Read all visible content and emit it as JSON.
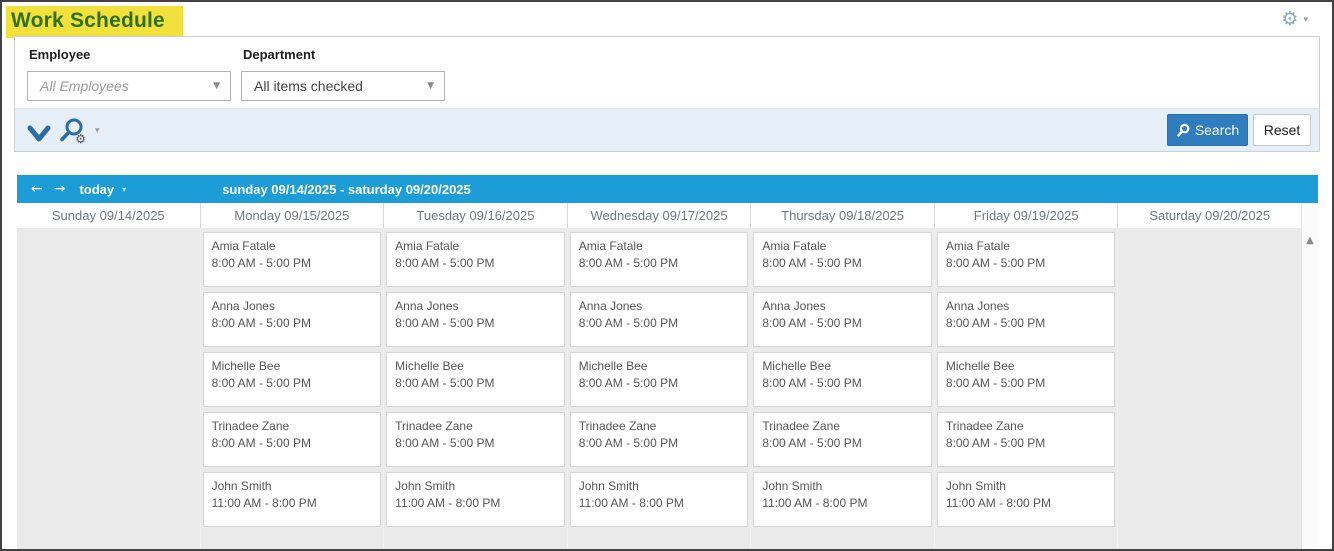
{
  "window": {
    "title": "Work Schedule"
  },
  "filters": {
    "employee_label": "Employee",
    "employee_value": "All Employees",
    "department_label": "Department",
    "department_value": "All items checked"
  },
  "toolbar": {
    "search_label": "Search",
    "reset_label": "Reset"
  },
  "scheduler": {
    "today_label": "today",
    "date_range": "sunday 09/14/2025 - saturday 09/20/2025",
    "days": [
      "Sunday 09/14/2025",
      "Monday 09/15/2025",
      "Tuesday 09/16/2025",
      "Wednesday 09/17/2025",
      "Thursday 09/18/2025",
      "Friday 09/19/2025",
      "Saturday 09/20/2025"
    ],
    "rows": [
      {
        "employee": "Amia Fatale",
        "time": "8:00 AM - 5:00 PM",
        "days": [
          1,
          2,
          3,
          4,
          5
        ]
      },
      {
        "employee": "Anna Jones",
        "time": "8:00 AM - 5:00 PM",
        "days": [
          1,
          2,
          3,
          4,
          5
        ]
      },
      {
        "employee": "Michelle Bee",
        "time": "8:00 AM - 5:00 PM",
        "days": [
          1,
          2,
          3,
          4,
          5
        ]
      },
      {
        "employee": "Trinadee Zane",
        "time": "8:00 AM - 5:00 PM",
        "days": [
          1,
          2,
          3,
          4,
          5
        ]
      },
      {
        "employee": "John Smith",
        "time": "11:00 AM - 8:00 PM",
        "days": [
          1,
          2,
          3,
          4,
          5
        ]
      }
    ]
  },
  "icons": {
    "gear": "⚙",
    "caret_down_small": "▾",
    "dropdown_caret": "▼",
    "arrow_left": "←",
    "arrow_right": "→",
    "scroll_up": "▲"
  },
  "colors": {
    "accent_blue": "#1d9dd8",
    "button_blue": "#2f7cbe",
    "title_green": "#2f7021",
    "highlight_yellow": "#f1e13a",
    "body_gray": "#eaeaea"
  }
}
